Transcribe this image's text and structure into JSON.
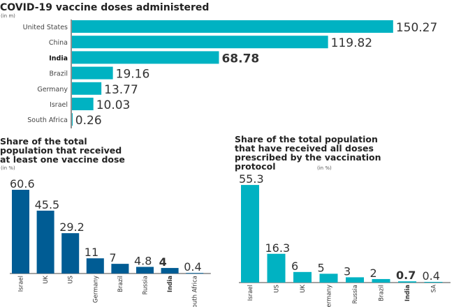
{
  "colors": {
    "teal": "#00b2c2",
    "blue": "#005c94",
    "text": "#333333"
  },
  "chart_data": [
    {
      "type": "bar",
      "orientation": "horizontal",
      "title": "COVID-19 vaccine doses administered",
      "unit": "(in m)",
      "categories": [
        "United States",
        "China",
        "India",
        "Brazil",
        "Germany",
        "Israel",
        "South Africa"
      ],
      "values": [
        150.27,
        119.82,
        68.78,
        19.16,
        13.77,
        10.03,
        0.26
      ],
      "labels": [
        "150.27",
        "119.82",
        "68.78",
        "19.16",
        "13.77",
        "10.03",
        "0.26"
      ],
      "highlight": "India"
    },
    {
      "type": "bar",
      "title_lines": [
        "Share of the total",
        "population that received",
        "at least one vaccine dose"
      ],
      "unit": "(in %)",
      "categories": [
        "Israel",
        "UK",
        "US",
        "Germany",
        "Brazil",
        "Russia",
        "India",
        "South Africa"
      ],
      "values": [
        60.6,
        45.5,
        29.2,
        11,
        7,
        4.8,
        4,
        0.4
      ],
      "labels": [
        "60.6",
        "45.5",
        "29.2",
        "11",
        "7",
        "4.8",
        "4",
        "0.4"
      ],
      "highlight": "India"
    },
    {
      "type": "bar",
      "title_lines": [
        "Share of the total population",
        "that have received all doses",
        "prescribed by the vaccination",
        "protocol"
      ],
      "unit": "(in %)",
      "categories": [
        "Israel",
        "US",
        "UK",
        "Germany",
        "Russia",
        "Brazil",
        "India",
        "SA"
      ],
      "values": [
        55.3,
        16.3,
        6,
        5,
        3,
        2,
        0.7,
        0.4
      ],
      "labels": [
        "55.3",
        "16.3",
        "6",
        "5",
        "3",
        "2",
        "0.7",
        "0.4"
      ],
      "highlight": "India"
    }
  ]
}
